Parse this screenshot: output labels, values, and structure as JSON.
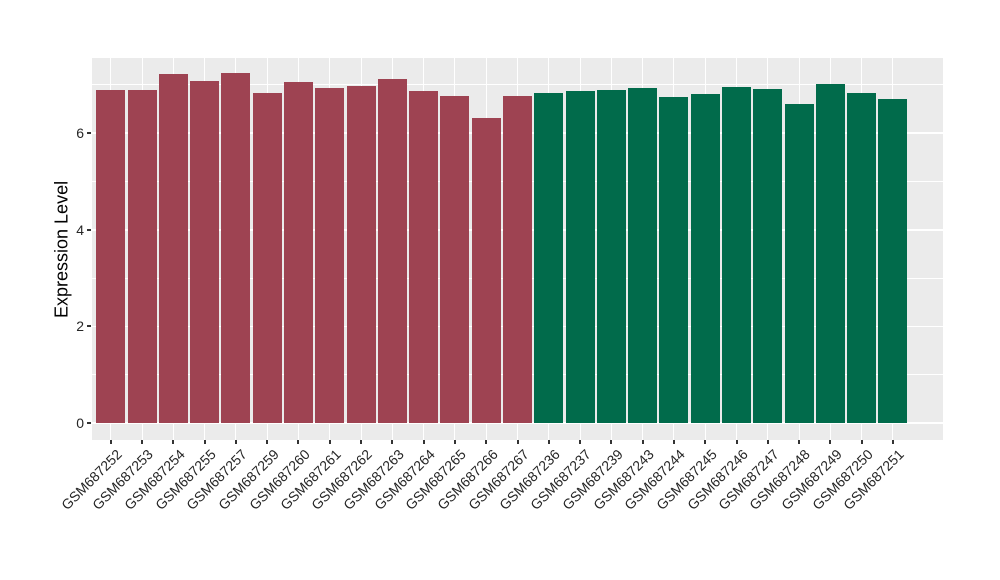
{
  "chart_data": {
    "type": "bar",
    "title": "",
    "xlabel": "",
    "ylabel": "Expression Level",
    "ylim": [
      0,
      7.56
    ],
    "yticks_major": [
      0,
      2,
      4,
      6
    ],
    "yticks_minor": [
      1,
      3,
      5,
      7
    ],
    "grid": "on",
    "legend": "none",
    "panel_bg": "#EBEBEB",
    "grid_color": "#FFFFFF",
    "axis_text_color": "#262626",
    "tick_mark_color": "#333333",
    "group_colors": {
      "group1": "#9E4352",
      "group2": "#016B4B"
    },
    "categories": [
      "GSM687252",
      "GSM687253",
      "GSM687254",
      "GSM687255",
      "GSM687257",
      "GSM687259",
      "GSM687260",
      "GSM687261",
      "GSM687262",
      "GSM687263",
      "GSM687264",
      "GSM687265",
      "GSM687266",
      "GSM687267",
      "GSM687236",
      "GSM687237",
      "GSM687239",
      "GSM687243",
      "GSM687244",
      "GSM687245",
      "GSM687246",
      "GSM687247",
      "GSM687248",
      "GSM687249",
      "GSM687250",
      "GSM687251"
    ],
    "values": [
      6.9,
      6.9,
      7.23,
      7.09,
      7.25,
      6.84,
      7.06,
      6.93,
      6.98,
      7.13,
      6.88,
      6.77,
      6.31,
      6.78,
      6.84,
      6.87,
      6.89,
      6.93,
      6.75,
      6.81,
      6.95,
      6.91,
      6.6,
      7.02,
      6.84,
      6.71
    ],
    "bar_groups": [
      "group1",
      "group1",
      "group1",
      "group1",
      "group1",
      "group1",
      "group1",
      "group1",
      "group1",
      "group1",
      "group1",
      "group1",
      "group1",
      "group1",
      "group2",
      "group2",
      "group2",
      "group2",
      "group2",
      "group2",
      "group2",
      "group2",
      "group2",
      "group2",
      "group2",
      "group2"
    ]
  }
}
